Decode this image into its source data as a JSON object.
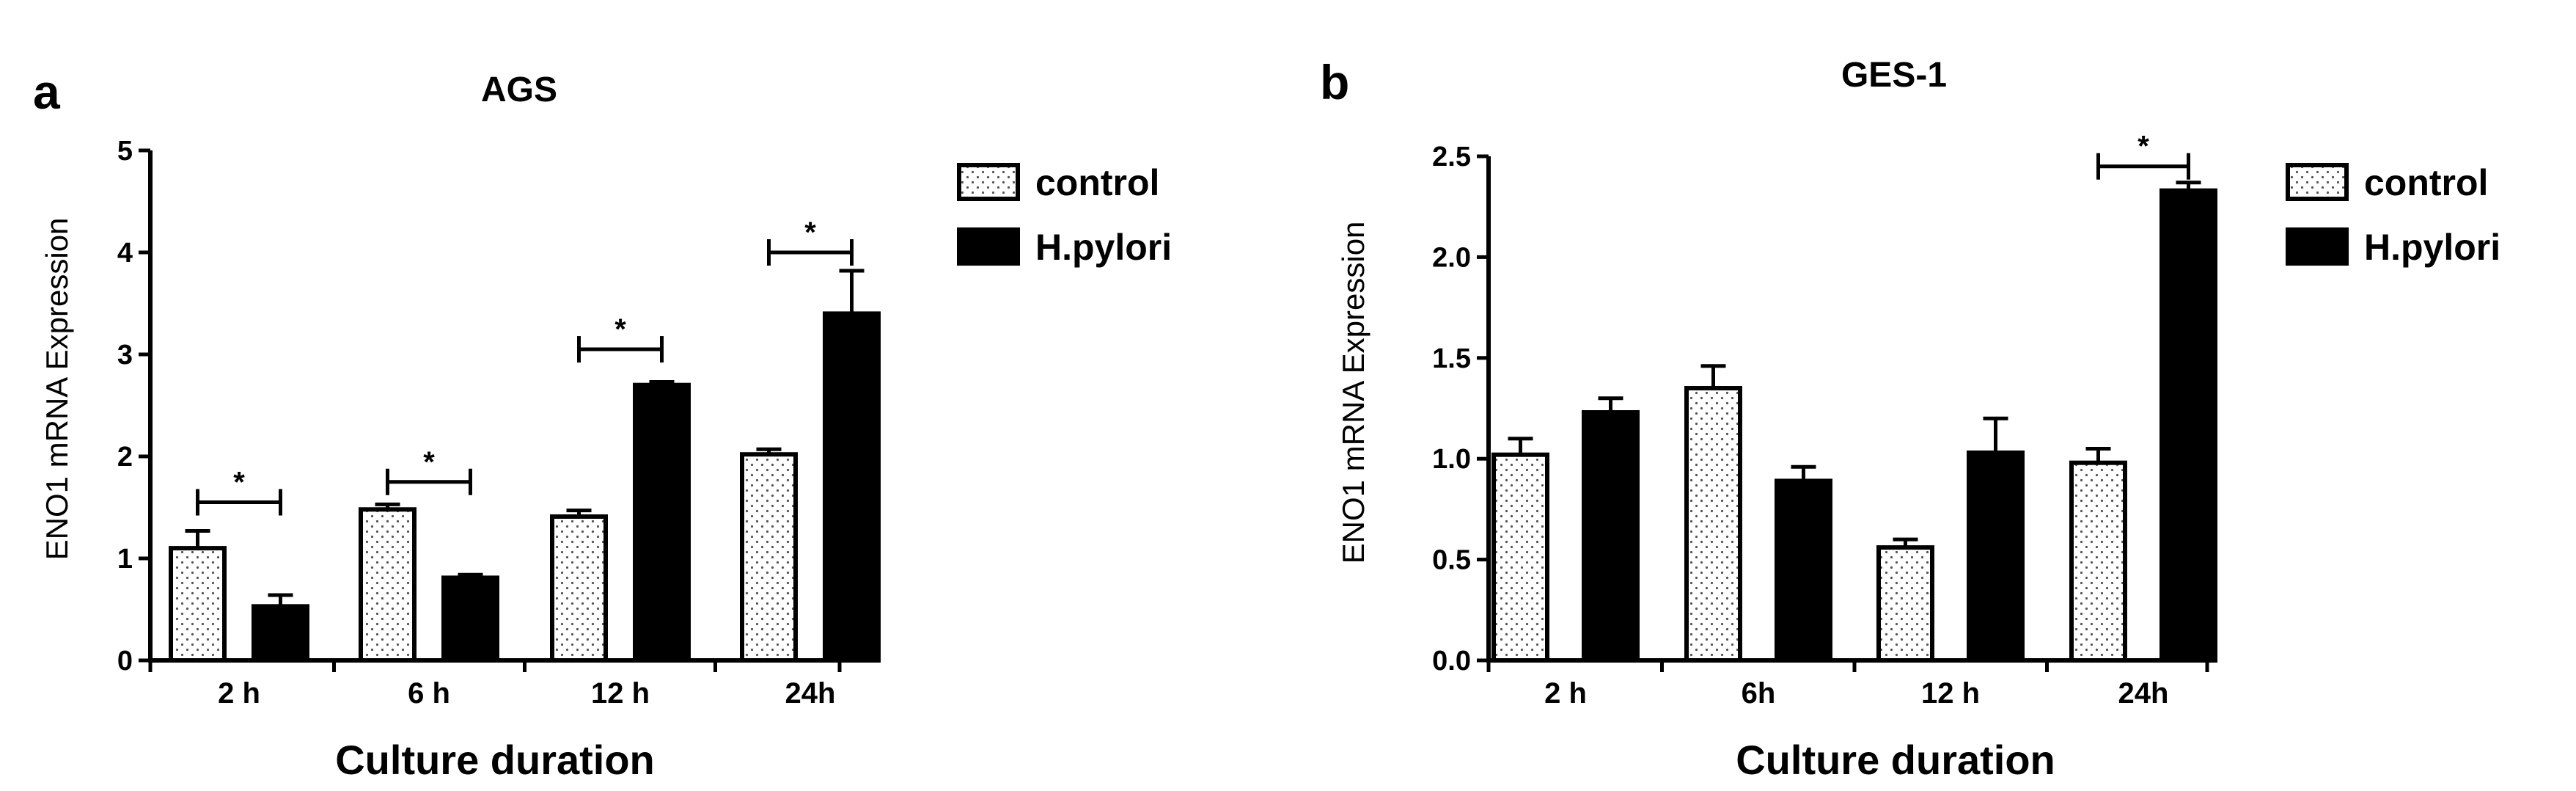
{
  "colors": {
    "control_fill": "#ffffff",
    "pylori_fill": "#000000",
    "axis": "#000000",
    "dots": "#555555"
  },
  "chart_data": [
    {
      "panel": "a",
      "type": "bar",
      "title": "AGS",
      "xlabel": "Culture duration",
      "ylabel": "ENO1 mRNA Expression",
      "categories": [
        "2 h",
        "6 h",
        "12 h",
        "24h"
      ],
      "ylim": [
        0,
        5
      ],
      "yticks": [
        "0",
        "1",
        "2",
        "3",
        "4",
        "5"
      ],
      "ytick_values": [
        0,
        1,
        2,
        3,
        4,
        5
      ],
      "series": [
        {
          "name": "control",
          "values": [
            1.1,
            1.48,
            1.41,
            2.02
          ],
          "errors": [
            0.17,
            0.05,
            0.06,
            0.05
          ]
        },
        {
          "name": "H.pylori",
          "values": [
            0.53,
            0.81,
            2.7,
            3.4
          ],
          "errors": [
            0.11,
            0.03,
            0.03,
            0.42
          ]
        }
      ],
      "significance": [
        {
          "category": "2 h",
          "label": "*",
          "level": 1.55
        },
        {
          "category": "6 h",
          "label": "*",
          "level": 1.75
        },
        {
          "category": "12 h",
          "label": "*",
          "level": 3.05
        },
        {
          "category": "24h",
          "label": "*",
          "level": 4.0
        }
      ],
      "legend": "right"
    },
    {
      "panel": "b",
      "type": "bar",
      "title": "GES-1",
      "xlabel": "Culture duration",
      "ylabel": "ENO1 mRNA Expression",
      "categories": [
        "2 h",
        "6h",
        "12 h",
        "24h"
      ],
      "ylim": [
        0,
        2.5
      ],
      "yticks": [
        "0.0",
        "0.5",
        "1.0",
        "1.5",
        "2.0",
        "2.5"
      ],
      "ytick_values": [
        0,
        0.5,
        1.0,
        1.5,
        2.0,
        2.5
      ],
      "series": [
        {
          "name": "control",
          "values": [
            1.02,
            1.35,
            0.56,
            0.98
          ],
          "errors": [
            0.08,
            0.11,
            0.04,
            0.07
          ]
        },
        {
          "name": "H.pylori",
          "values": [
            1.23,
            0.89,
            1.03,
            2.33
          ],
          "errors": [
            0.07,
            0.07,
            0.17,
            0.04
          ]
        }
      ],
      "significance": [
        {
          "category": "24h",
          "label": "*",
          "level": 2.45
        }
      ],
      "legend": "right"
    }
  ]
}
